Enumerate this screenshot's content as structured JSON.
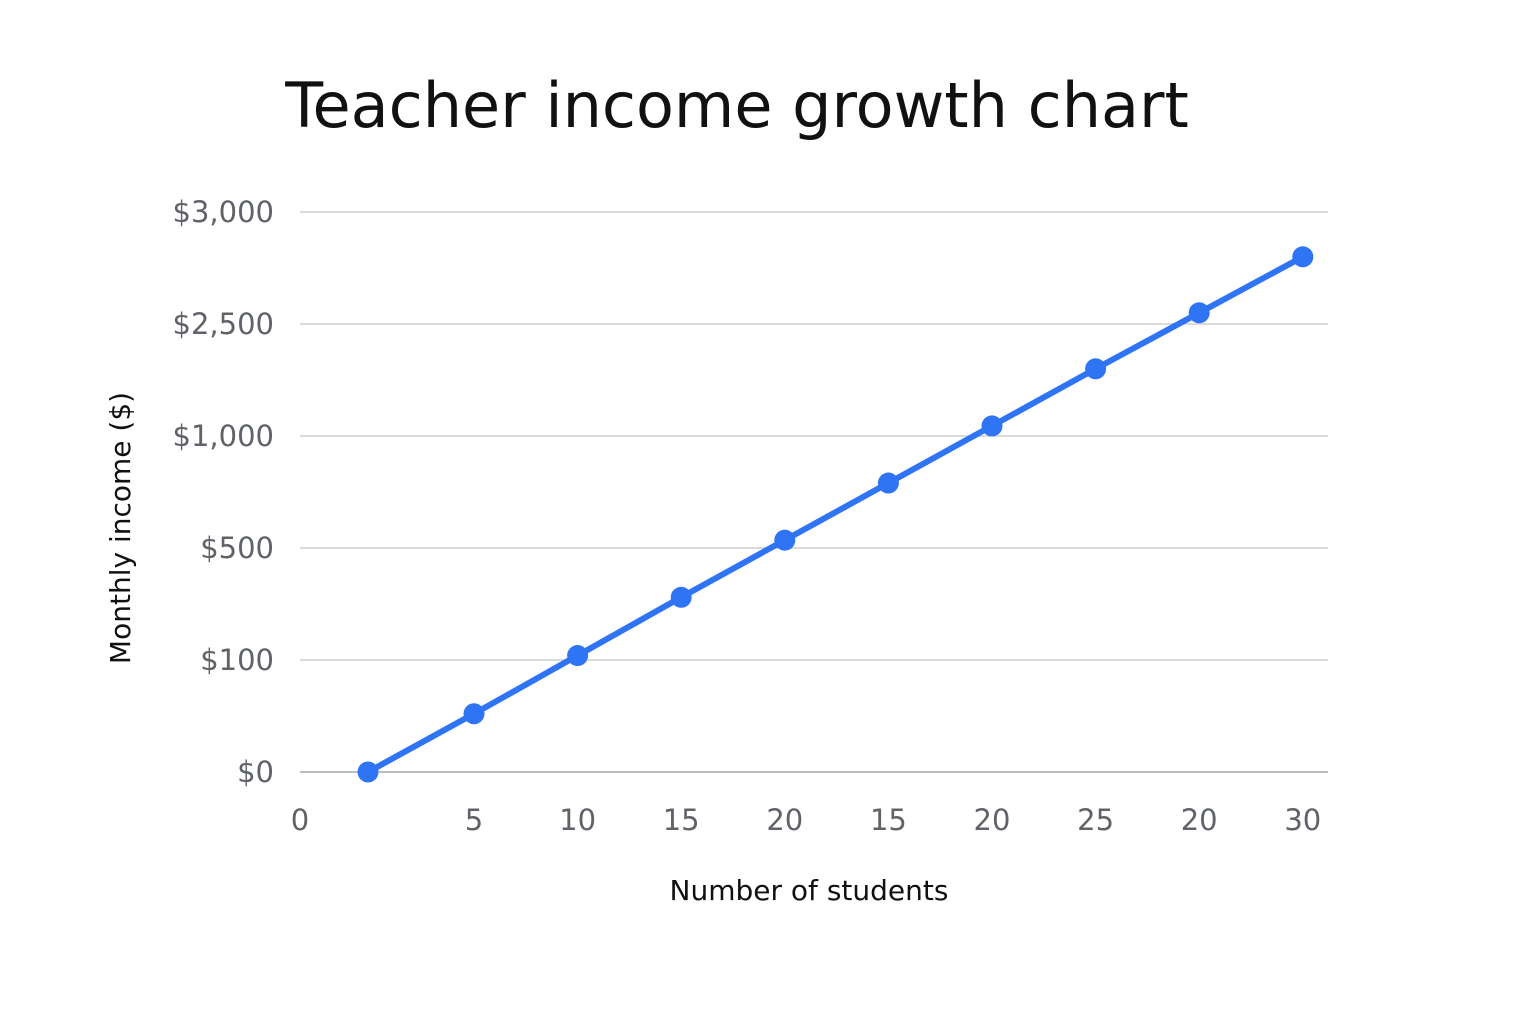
{
  "chart_data": {
    "type": "line",
    "title": "Teacher income growth chart",
    "xlabel": "Number of students",
    "ylabel": "Monthly income ($)",
    "y_axis_scale": "categorical (ticks evenly spaced, non-linear labels)",
    "y_ticks": [
      "$0",
      "$100",
      "$500",
      "$1,000",
      "$2,500",
      "$3,000"
    ],
    "x_ticks": [
      "0",
      "5",
      "10",
      "15",
      "20",
      "15",
      "20",
      "25",
      "20",
      "30"
    ],
    "grid": true,
    "legend": "none",
    "series": [
      {
        "color": "#2f74f5",
        "points": [
          {
            "x_index": 0.66,
            "y_level": 0.0
          },
          {
            "x_index": 1.0,
            "y_level": 0.52
          },
          {
            "x_index": 2.0,
            "y_level": 1.04
          },
          {
            "x_index": 3.0,
            "y_level": 1.56
          },
          {
            "x_index": 4.0,
            "y_level": 2.07
          },
          {
            "x_index": 5.0,
            "y_level": 2.58
          },
          {
            "x_index": 6.0,
            "y_level": 3.09
          },
          {
            "x_index": 7.0,
            "y_level": 3.6
          },
          {
            "x_index": 8.0,
            "y_level": 4.1
          },
          {
            "x_index": 9.0,
            "y_level": 4.6
          }
        ]
      }
    ]
  }
}
